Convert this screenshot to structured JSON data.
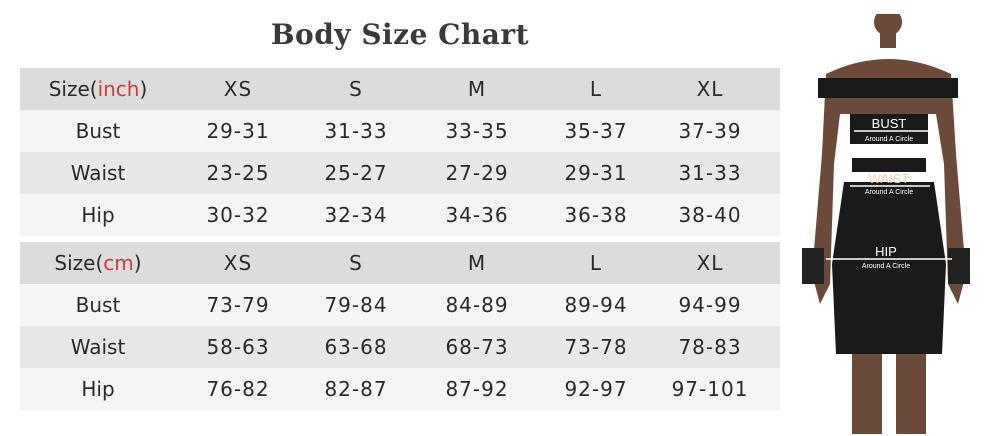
{
  "title": "Body Size Chart",
  "tables": [
    {
      "header": {
        "prefix": "Size(",
        "unit": "inch",
        "suffix": ")",
        "sizes": [
          "XS",
          "S",
          "M",
          "L",
          "XL"
        ]
      },
      "rows": [
        {
          "label": "Bust",
          "values": [
            "29-31",
            "31-33",
            "33-35",
            "35-37",
            "37-39"
          ]
        },
        {
          "label": "Waist",
          "values": [
            "23-25",
            "25-27",
            "27-29",
            "29-31",
            "31-33"
          ]
        },
        {
          "label": "Hip",
          "values": [
            "30-32",
            "32-34",
            "34-36",
            "36-38",
            "38-40"
          ]
        }
      ]
    },
    {
      "header": {
        "prefix": "Size(",
        "unit": "cm",
        "suffix": ")",
        "sizes": [
          "XS",
          "S",
          "M",
          "L",
          "XL"
        ]
      },
      "rows": [
        {
          "label": "Bust",
          "values": [
            "73-79",
            "79-84",
            "84-89",
            "89-94",
            "94-99"
          ]
        },
        {
          "label": "Waist",
          "values": [
            "58-63",
            "63-68",
            "68-73",
            "73-78",
            "78-83"
          ]
        },
        {
          "label": "Hip",
          "values": [
            "76-82",
            "82-87",
            "87-92",
            "92-97",
            "97-101"
          ]
        }
      ]
    }
  ],
  "figure": {
    "bust": "BUST",
    "waist": "WAIST",
    "hip": "HIP",
    "note": "Around A Circle"
  },
  "colors": {
    "accent": "#d23a3a",
    "header_bg": "#dcdcdc"
  }
}
